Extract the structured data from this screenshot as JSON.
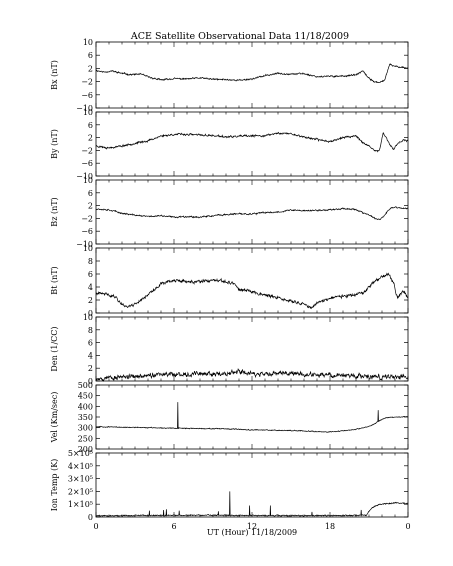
{
  "chart_data": [
    {
      "type": "line",
      "ylabel": "Bx (nT)",
      "ylim": [
        -10,
        10
      ],
      "yticks": [
        {
          "v": 10,
          "t": "10"
        },
        {
          "v": 6,
          "t": "6"
        },
        {
          "v": 2,
          "t": "2"
        },
        {
          "v": -2,
          "t": "−2"
        },
        {
          "v": -6,
          "t": "−6"
        },
        {
          "v": -10,
          "t": "−10"
        }
      ],
      "keypoints": [
        [
          0,
          1.4
        ],
        [
          0.6,
          0.9
        ],
        [
          1.2,
          1.2
        ],
        [
          2,
          0.5
        ],
        [
          2.7,
          0.1
        ],
        [
          3.4,
          0.3
        ],
        [
          4.2,
          -0.8
        ],
        [
          5,
          -1.5
        ],
        [
          6,
          -1.1
        ],
        [
          7,
          -1.2
        ],
        [
          8,
          -0.9
        ],
        [
          9,
          -1.3
        ],
        [
          10,
          -1.4
        ],
        [
          11,
          -1.6
        ],
        [
          12,
          -1.2
        ],
        [
          13,
          -0.2
        ],
        [
          14,
          0.5
        ],
        [
          15,
          0.3
        ],
        [
          16,
          0.4
        ],
        [
          17,
          -0.5
        ],
        [
          18,
          -0.4
        ],
        [
          19,
          -0.3
        ],
        [
          20,
          0.0
        ],
        [
          20.5,
          1.2
        ],
        [
          21,
          -1.0
        ],
        [
          21.4,
          -2.0
        ],
        [
          21.8,
          -2.4
        ],
        [
          22.2,
          -1.5
        ],
        [
          22.6,
          3.2
        ],
        [
          23,
          2.6
        ],
        [
          23.5,
          2.4
        ],
        [
          24,
          2.0
        ]
      ],
      "noise": 0.35,
      "seed": 11,
      "spikes": []
    },
    {
      "type": "line",
      "ylabel": "By (nT)",
      "ylim": [
        -10,
        10
      ],
      "yticks": [
        {
          "v": 10,
          "t": "10"
        },
        {
          "v": 6,
          "t": "6"
        },
        {
          "v": 2,
          "t": "2"
        },
        {
          "v": -2,
          "t": "−2"
        },
        {
          "v": -6,
          "t": "−6"
        },
        {
          "v": -10,
          "t": "−10"
        }
      ],
      "keypoints": [
        [
          0,
          -0.6
        ],
        [
          1,
          -1.2
        ],
        [
          2,
          -0.6
        ],
        [
          3,
          0.2
        ],
        [
          4,
          1.0
        ],
        [
          5,
          2.5
        ],
        [
          6,
          3.0
        ],
        [
          7,
          3.0
        ],
        [
          8,
          2.8
        ],
        [
          9,
          2.6
        ],
        [
          10,
          2.2
        ],
        [
          11,
          2.4
        ],
        [
          12,
          2.5
        ],
        [
          13,
          2.6
        ],
        [
          14,
          3.4
        ],
        [
          15,
          3.2
        ],
        [
          16,
          2.2
        ],
        [
          17,
          1.4
        ],
        [
          18,
          0.8
        ],
        [
          19,
          2.0
        ],
        [
          20,
          2.6
        ],
        [
          20.6,
          0.2
        ],
        [
          21,
          -0.8
        ],
        [
          21.4,
          -2.0
        ],
        [
          21.8,
          -2.2
        ],
        [
          22.1,
          3.8
        ],
        [
          22.5,
          0.3
        ],
        [
          22.9,
          -1.6
        ],
        [
          23.3,
          0.6
        ],
        [
          23.7,
          1.2
        ],
        [
          24,
          0.8
        ]
      ],
      "noise": 0.45,
      "seed": 23,
      "spikes": []
    },
    {
      "type": "line",
      "ylabel": "Bz (nT)",
      "ylim": [
        -10,
        10
      ],
      "yticks": [
        {
          "v": 10,
          "t": "10"
        },
        {
          "v": 6,
          "t": "6"
        },
        {
          "v": 2,
          "t": "2"
        },
        {
          "v": -2,
          "t": "−2"
        },
        {
          "v": -6,
          "t": "−6"
        },
        {
          "v": -10,
          "t": "−10"
        }
      ],
      "keypoints": [
        [
          0,
          1.0
        ],
        [
          1,
          0.7
        ],
        [
          2,
          -0.4
        ],
        [
          3,
          -1.0
        ],
        [
          4,
          -1.4
        ],
        [
          5,
          -1.2
        ],
        [
          6,
          -1.6
        ],
        [
          7,
          -1.4
        ],
        [
          8,
          -1.6
        ],
        [
          9,
          -1.2
        ],
        [
          10,
          -0.8
        ],
        [
          11,
          -0.6
        ],
        [
          12,
          -0.6
        ],
        [
          13,
          -0.2
        ],
        [
          14,
          0.0
        ],
        [
          15,
          0.6
        ],
        [
          16,
          0.4
        ],
        [
          17,
          0.5
        ],
        [
          18,
          0.7
        ],
        [
          19,
          1.1
        ],
        [
          20,
          0.8
        ],
        [
          20.6,
          -0.4
        ],
        [
          21,
          -0.9
        ],
        [
          21.6,
          -2.4
        ],
        [
          22,
          -2.0
        ],
        [
          22.6,
          1.0
        ],
        [
          23,
          1.5
        ],
        [
          23.5,
          1.2
        ],
        [
          24,
          1.0
        ]
      ],
      "noise": 0.35,
      "seed": 37,
      "spikes": []
    },
    {
      "type": "line",
      "ylabel": "Bt (nT)",
      "ylim": [
        0,
        10
      ],
      "yticks": [
        {
          "v": 10,
          "t": "10"
        },
        {
          "v": 8,
          "t": "8"
        },
        {
          "v": 6,
          "t": "6"
        },
        {
          "v": 4,
          "t": "4"
        },
        {
          "v": 2,
          "t": "2"
        },
        {
          "v": 0,
          "t": "0"
        }
      ],
      "keypoints": [
        [
          0,
          3.0
        ],
        [
          0.8,
          2.9
        ],
        [
          1.5,
          2.5
        ],
        [
          2,
          1.3
        ],
        [
          2.5,
          1.0
        ],
        [
          3,
          1.4
        ],
        [
          3.6,
          2.2
        ],
        [
          4,
          2.9
        ],
        [
          4.5,
          3.5
        ],
        [
          5,
          4.6
        ],
        [
          6,
          5.0
        ],
        [
          7,
          4.8
        ],
        [
          8,
          4.8
        ],
        [
          9,
          5.0
        ],
        [
          10,
          4.8
        ],
        [
          10.6,
          4.6
        ],
        [
          11,
          3.6
        ],
        [
          12,
          3.3
        ],
        [
          13,
          2.8
        ],
        [
          14,
          2.3
        ],
        [
          15,
          1.8
        ],
        [
          16,
          1.4
        ],
        [
          16.6,
          0.7
        ],
        [
          17,
          1.6
        ],
        [
          18,
          2.3
        ],
        [
          19,
          2.6
        ],
        [
          20,
          2.8
        ],
        [
          20.6,
          3.0
        ],
        [
          21,
          4.0
        ],
        [
          21.5,
          5.0
        ],
        [
          22,
          5.5
        ],
        [
          22.5,
          6.0
        ],
        [
          22.9,
          4.5
        ],
        [
          23.2,
          2.2
        ],
        [
          23.6,
          3.4
        ],
        [
          24,
          2.5
        ]
      ],
      "noise": 0.35,
      "seed": 41,
      "spikes": []
    },
    {
      "type": "line",
      "ylabel": "Den (1/CC)",
      "ylim": [
        0,
        10
      ],
      "yticks": [
        {
          "v": 10,
          "t": "10"
        },
        {
          "v": 8,
          "t": "8"
        },
        {
          "v": 6,
          "t": "6"
        },
        {
          "v": 4,
          "t": "4"
        },
        {
          "v": 2,
          "t": "2"
        },
        {
          "v": 0,
          "t": "0"
        }
      ],
      "keypoints": [
        [
          0,
          0.4
        ],
        [
          2,
          0.6
        ],
        [
          4,
          0.9
        ],
        [
          6,
          1.0
        ],
        [
          8,
          1.2
        ],
        [
          10,
          1.1
        ],
        [
          11,
          1.5
        ],
        [
          12,
          1.0
        ],
        [
          14,
          1.3
        ],
        [
          16,
          1.0
        ],
        [
          18,
          0.9
        ],
        [
          20,
          0.8
        ],
        [
          22,
          0.6
        ],
        [
          24,
          0.6
        ]
      ],
      "noise": 0.55,
      "seed": 53,
      "spikes": []
    },
    {
      "type": "line",
      "ylabel": "Vel (Km/sec)",
      "ylim": [
        200,
        500
      ],
      "yticks": [
        {
          "v": 500,
          "t": "500"
        },
        {
          "v": 450,
          "t": "450"
        },
        {
          "v": 400,
          "t": "400"
        },
        {
          "v": 350,
          "t": "350"
        },
        {
          "v": 300,
          "t": "300"
        },
        {
          "v": 250,
          "t": "250"
        },
        {
          "v": 200,
          "t": "200"
        }
      ],
      "keypoints": [
        [
          0,
          305
        ],
        [
          2,
          302
        ],
        [
          4,
          300
        ],
        [
          6,
          298
        ],
        [
          8,
          296
        ],
        [
          10,
          294
        ],
        [
          12,
          290
        ],
        [
          14,
          288
        ],
        [
          16,
          285
        ],
        [
          17,
          282
        ],
        [
          18,
          280
        ],
        [
          19,
          285
        ],
        [
          20,
          292
        ],
        [
          21,
          305
        ],
        [
          21.6,
          325
        ],
        [
          22.2,
          345
        ],
        [
          23,
          350
        ],
        [
          24,
          352
        ]
      ],
      "noise": 3.0,
      "seed": 67,
      "spikes": [
        [
          6.3,
          420
        ],
        [
          21.7,
          382
        ]
      ]
    },
    {
      "type": "line",
      "ylabel": "Ion Temp (K)",
      "ylim": [
        0,
        500000
      ],
      "yticks": [
        {
          "v": 500000,
          "t": "5×10⁵"
        },
        {
          "v": 400000,
          "t": "4×10⁵"
        },
        {
          "v": 300000,
          "t": "3×10⁵"
        },
        {
          "v": 200000,
          "t": "2×10⁵"
        },
        {
          "v": 100000,
          "t": "1×10⁵"
        },
        {
          "v": 0,
          "t": "0"
        }
      ],
      "keypoints": [
        [
          0,
          10000
        ],
        [
          4,
          12000
        ],
        [
          8,
          14000
        ],
        [
          12,
          12000
        ],
        [
          16,
          10000
        ],
        [
          20,
          12000
        ],
        [
          20.8,
          15000
        ],
        [
          21.2,
          70000
        ],
        [
          21.8,
          100000
        ],
        [
          22.5,
          105000
        ],
        [
          23,
          110000
        ],
        [
          24,
          105000
        ]
      ],
      "noise": 7000,
      "seed": 79,
      "spikes": [
        [
          4.1,
          50000
        ],
        [
          5.2,
          55000
        ],
        [
          5.4,
          60000
        ],
        [
          6.4,
          50000
        ],
        [
          9.4,
          45000
        ],
        [
          10.3,
          200000
        ],
        [
          11.8,
          90000
        ],
        [
          13.4,
          90000
        ],
        [
          16.6,
          40000
        ],
        [
          20.4,
          55000
        ]
      ]
    }
  ],
  "figure": {
    "title": "ACE Satellite Observational Data   11/18/2009",
    "xlabel": "UT (Hour)   11/18/2009",
    "xlim": [
      0,
      24
    ],
    "xticks": [
      {
        "v": 0,
        "t": "0"
      },
      {
        "v": 6,
        "t": "6"
      },
      {
        "v": 12,
        "t": "12"
      },
      {
        "v": 18,
        "t": "18"
      },
      {
        "v": 24,
        "t": "0"
      }
    ],
    "grid": false
  }
}
